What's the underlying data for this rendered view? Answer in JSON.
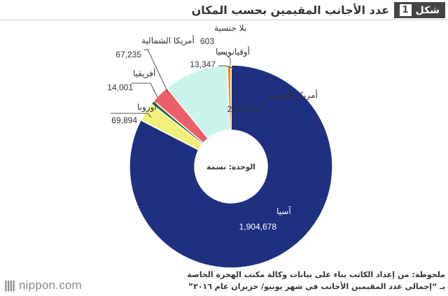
{
  "header": {
    "badge_word": "شكل",
    "badge_number": "1",
    "title": "عدد الأجانب المقيمين بحسب المكان"
  },
  "footer": {
    "brand": "nippon.com",
    "note_line1": "ملحوظة: من إعداد الكاتب بناء على بيانات وكالة مكتب الهجرة الخاصة",
    "note_line2": "بـ “إجمالي عدد المقيمين الأجانب في شهر يونيو/ حزيران عام ٢٠١٦”"
  },
  "chart_data": {
    "type": "pie",
    "variant": "donut",
    "center_label": "الوحدة: نسمة",
    "slices": [
      {
        "label": "بلا جنسية",
        "value": 603,
        "value_text": "603",
        "color": "#d4b64a"
      },
      {
        "label": "آسيا",
        "value": 1904678,
        "value_text": "1,904,678",
        "color": "#1f3081"
      },
      {
        "label": "أوروبا",
        "value": 69894,
        "value_text": "69,894",
        "color": "#f2f07a"
      },
      {
        "label": "أفريقيا",
        "value": 14001,
        "value_text": "14,001",
        "color": "#2e6b2e"
      },
      {
        "label": "أمريكا الشمالية",
        "value": 67235,
        "value_text": "67,235",
        "color": "#ec5e68"
      },
      {
        "label": "أمريكا الجنوبية",
        "value": 237630,
        "value_text": "237,630",
        "color": "#c9f5ec"
      },
      {
        "label": "أوقيانوسيا",
        "value": 13347,
        "value_text": "13,347",
        "color": "#f08b14"
      }
    ]
  }
}
